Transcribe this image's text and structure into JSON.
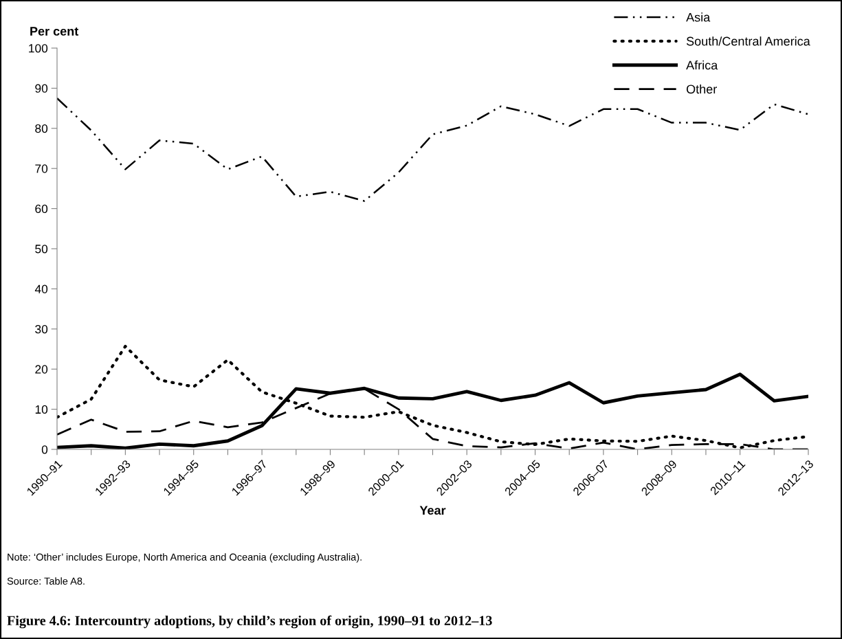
{
  "chart_data": {
    "type": "line",
    "title": "Figure 4.6: Intercountry adoptions, by child’s region of origin, 1990–91 to 2012–13",
    "xlabel": "Year",
    "ylabel": "Per cent",
    "categories": [
      "1990–91",
      null,
      "1992–93",
      null,
      "1994–95",
      null,
      "1996–97",
      null,
      "1998–99",
      null,
      "2000–01",
      null,
      "2002–03",
      null,
      "2004–05",
      null,
      "2006–07",
      null,
      "2008–09",
      null,
      "2010–11",
      null,
      "2012–13"
    ],
    "series": [
      {
        "name": "Asia",
        "color": "#000000",
        "line_style": "dashdotdot",
        "values": [
          87.5,
          79.5,
          69.8,
          77,
          76.2,
          69.8,
          73,
          63,
          64.2,
          61.9,
          69,
          78.5,
          80.7,
          85.5,
          83.5,
          80.6,
          84.8,
          84.8,
          81.4,
          81.4,
          79.6,
          86,
          83.5
        ]
      },
      {
        "name": "South/Central America",
        "color": "#000000",
        "line_style": "dotted",
        "values": [
          8,
          12.5,
          25.7,
          17.3,
          15.6,
          22.3,
          14.3,
          11.5,
          8.3,
          8,
          9.4,
          6,
          4.2,
          1.9,
          1.2,
          2.6,
          2.1,
          2,
          3.3,
          2.2,
          0.4,
          2.2,
          3.2
        ]
      },
      {
        "name": "Africa",
        "color": "#000000",
        "line_style": "solid",
        "values": [
          0.5,
          0.9,
          0.3,
          1.3,
          0.9,
          2.1,
          5.9,
          15.1,
          14,
          15.2,
          12.8,
          12.6,
          14.4,
          12.2,
          13.5,
          16.6,
          11.6,
          13.3,
          14.1,
          14.9,
          18.7,
          12.1,
          13.2
        ]
      },
      {
        "name": "Other",
        "color": "#000000",
        "line_style": "dashed",
        "values": [
          3.7,
          7.4,
          4.4,
          4.5,
          7.1,
          5.5,
          6.7,
          10.3,
          13.9,
          15.1,
          10,
          2.6,
          0.8,
          0.5,
          1.5,
          0.2,
          1.7,
          0,
          1.1,
          1.3,
          1.3,
          0,
          0
        ]
      }
    ],
    "ylim": [
      0,
      100
    ],
    "yticks": [
      0,
      10,
      20,
      30,
      40,
      50,
      60,
      70,
      80,
      90,
      100
    ],
    "grid": false,
    "legend": "top right",
    "marker": "none",
    "annotations": [
      "Note: ‘Other’ includes Europe, North America and Oceania (excluding Australia).",
      "Source: Table A8."
    ]
  }
}
